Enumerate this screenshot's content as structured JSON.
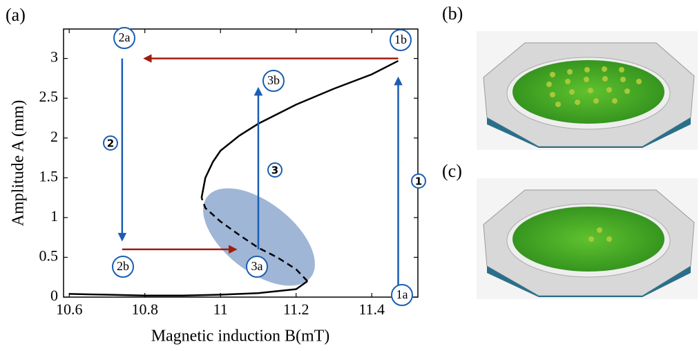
{
  "chart_data": {
    "type": "line",
    "panel_labels": [
      "(a)",
      "(b)",
      "(c)"
    ],
    "xlabel": "Magnetic induction B(mT)",
    "ylabel": "Amplitude A (mm)",
    "xlim": [
      10.585,
      11.522
    ],
    "ylim": [
      0,
      3.37
    ],
    "xticks": [
      10.6,
      10.8,
      11,
      11.2,
      11.4
    ],
    "yticks": [
      0,
      0.5,
      1,
      1.5,
      2,
      2.5,
      3
    ],
    "series": [
      {
        "color": "#000000",
        "style": "solid",
        "x": [
          10.6,
          10.7,
          10.8,
          10.9,
          11.0,
          11.1,
          11.2,
          11.23
        ],
        "values": [
          0.04,
          0.03,
          0.02,
          0.02,
          0.03,
          0.05,
          0.1,
          0.2
        ]
      },
      {
        "color": "#000000",
        "style": "dashed",
        "x": [
          11.23,
          11.2,
          11.15,
          11.1,
          11.05,
          11.0,
          10.96,
          10.95
        ],
        "values": [
          0.2,
          0.35,
          0.5,
          0.62,
          0.78,
          0.95,
          1.12,
          1.25
        ]
      },
      {
        "color": "#000000",
        "style": "solid",
        "x": [
          10.95,
          10.96,
          10.98,
          11.0,
          11.05,
          11.1,
          11.2,
          11.3,
          11.4,
          11.47
        ],
        "values": [
          1.25,
          1.5,
          1.7,
          1.84,
          2.03,
          2.18,
          2.42,
          2.62,
          2.8,
          2.97
        ]
      }
    ],
    "arrows": [
      {
        "color": "#1a5db3",
        "x": [
          11.47,
          11.47
        ],
        "y": [
          0,
          2.75
        ]
      },
      {
        "color": "#1a5db3",
        "x": [
          10.74,
          10.74
        ],
        "y": [
          3,
          0.72
        ]
      },
      {
        "color": "#1a5db3",
        "x": [
          11.1,
          11.1
        ],
        "y": [
          0.6,
          2.62
        ]
      },
      {
        "color": "#a01c0c",
        "x": [
          11.47,
          10.8
        ],
        "y": [
          3,
          3
        ]
      },
      {
        "color": "#a01c0c",
        "x": [
          10.74,
          11.04
        ],
        "y": [
          0.6,
          0.6
        ]
      }
    ],
    "annotations": [
      "1a",
      "1b",
      "2a",
      "2b",
      "3a",
      "3b",
      "1",
      "2",
      "3"
    ]
  }
}
